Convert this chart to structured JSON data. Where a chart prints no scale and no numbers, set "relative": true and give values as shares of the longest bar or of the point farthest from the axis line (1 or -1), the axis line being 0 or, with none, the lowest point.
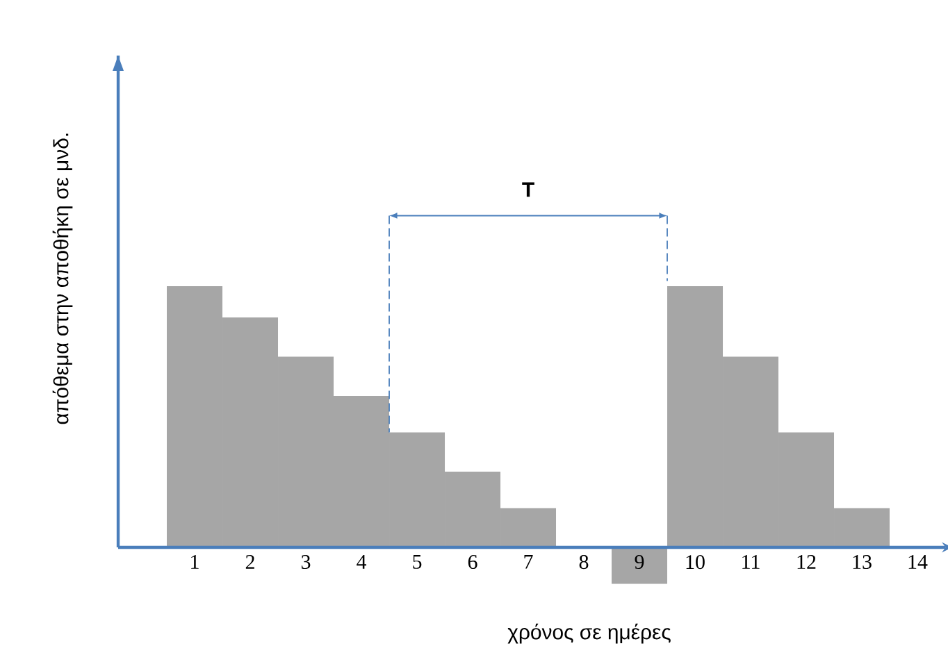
{
  "chart_data": {
    "type": "bar",
    "relative": true,
    "xlabel": "χρόνος σε ημέρες",
    "ylabel": "απόθεμα στην αποθήκη σε μνδ.",
    "annotations": [
      "T"
    ],
    "categories": [
      "1",
      "2",
      "3",
      "4",
      "5",
      "6",
      "7",
      "8",
      "9",
      "10",
      "11",
      "12",
      "13",
      "14"
    ],
    "values": [
      1,
      0.88,
      0.73,
      0.58,
      0.44,
      0.29,
      0.15,
      null,
      -0.14,
      1,
      0.73,
      0.44,
      0.15,
      null
    ],
    "color": "#a6a6a6"
  }
}
